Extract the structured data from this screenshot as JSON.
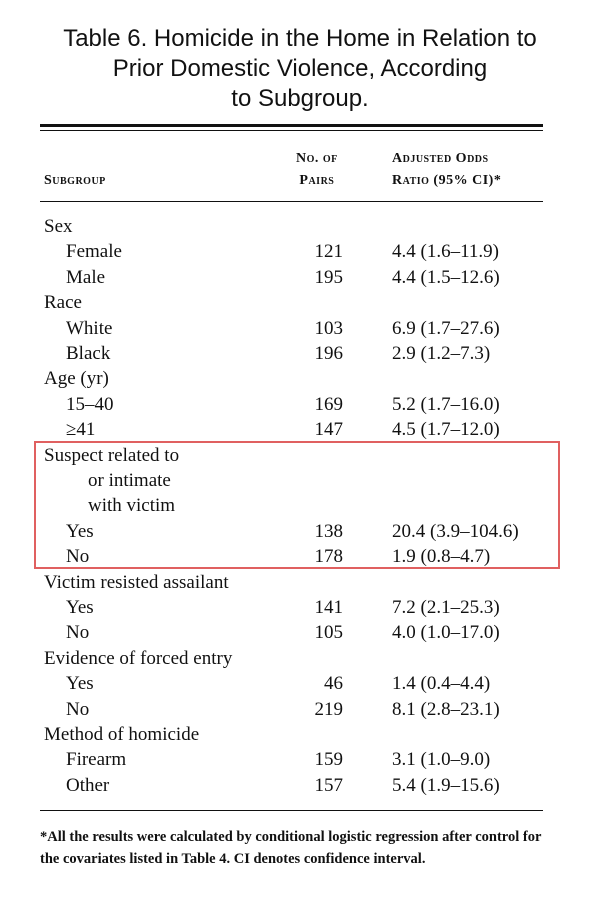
{
  "title": {
    "line1": "Table 6. Homicide in the Home in Relation to",
    "line2": "Prior Domestic Violence, According",
    "line3": "to Subgroup."
  },
  "columns": {
    "subgroup": "Subgroup",
    "pairs_line1": "No. of",
    "pairs_line2": "Pairs",
    "ratio_line1": "Adjusted Odds",
    "ratio_line2": "Ratio (95% CI)*"
  },
  "rows": [
    {
      "label": "Sex",
      "pairs": "",
      "ratio": "",
      "level": 0
    },
    {
      "label": "Female",
      "pairs": "121",
      "ratio": "4.4 (1.6–11.9)",
      "level": 1
    },
    {
      "label": "Male",
      "pairs": "195",
      "ratio": "4.4 (1.5–12.6)",
      "level": 1
    },
    {
      "label": "Race",
      "pairs": "",
      "ratio": "",
      "level": 0
    },
    {
      "label": "White",
      "pairs": "103",
      "ratio": "6.9 (1.7–27.6)",
      "level": 1
    },
    {
      "label": "Black",
      "pairs": "196",
      "ratio": "2.9 (1.2–7.3)",
      "level": 1
    },
    {
      "label": "Age (yr)",
      "pairs": "",
      "ratio": "",
      "level": 0
    },
    {
      "label": "15–40",
      "pairs": "169",
      "ratio": "5.2 (1.7–16.0)",
      "level": 1
    },
    {
      "label": "≥41",
      "pairs": "147",
      "ratio": "4.5 (1.7–12.0)",
      "level": 1
    },
    {
      "label": "Suspect related to",
      "pairs": "",
      "ratio": "",
      "level": 0
    },
    {
      "label": "or intimate",
      "pairs": "",
      "ratio": "",
      "level": 2
    },
    {
      "label": "with victim",
      "pairs": "",
      "ratio": "",
      "level": 2
    },
    {
      "label": "Yes",
      "pairs": "138",
      "ratio": "20.4 (3.9–104.6)",
      "level": 1
    },
    {
      "label": "No",
      "pairs": "178",
      "ratio": "1.9 (0.8–4.7)",
      "level": 1
    },
    {
      "label": "Victim resisted assailant",
      "pairs": "",
      "ratio": "",
      "level": 0
    },
    {
      "label": "Yes",
      "pairs": "141",
      "ratio": "7.2 (2.1–25.3)",
      "level": 1
    },
    {
      "label": "No",
      "pairs": "105",
      "ratio": "4.0 (1.0–17.0)",
      "level": 1
    },
    {
      "label": "Evidence of forced entry",
      "pairs": "",
      "ratio": "",
      "level": 0
    },
    {
      "label": "Yes",
      "pairs": "46",
      "ratio": "1.4 (0.4–4.4)",
      "level": 1
    },
    {
      "label": "No",
      "pairs": "219",
      "ratio": "8.1 (2.8–23.1)",
      "level": 1
    },
    {
      "label": "Method of homicide",
      "pairs": "",
      "ratio": "",
      "level": 0
    },
    {
      "label": "Firearm",
      "pairs": "159",
      "ratio": "3.1 (1.0–9.0)",
      "level": 1
    },
    {
      "label": "Other",
      "pairs": "157",
      "ratio": "5.4 (1.9–15.6)",
      "level": 1
    }
  ],
  "footnote": "*All the results were calculated by conditional logistic regression after control for the covariates listed in Table 4. CI denotes confidence interval.",
  "colors": {
    "highlight_border": "#e06060",
    "text": "#111111"
  }
}
